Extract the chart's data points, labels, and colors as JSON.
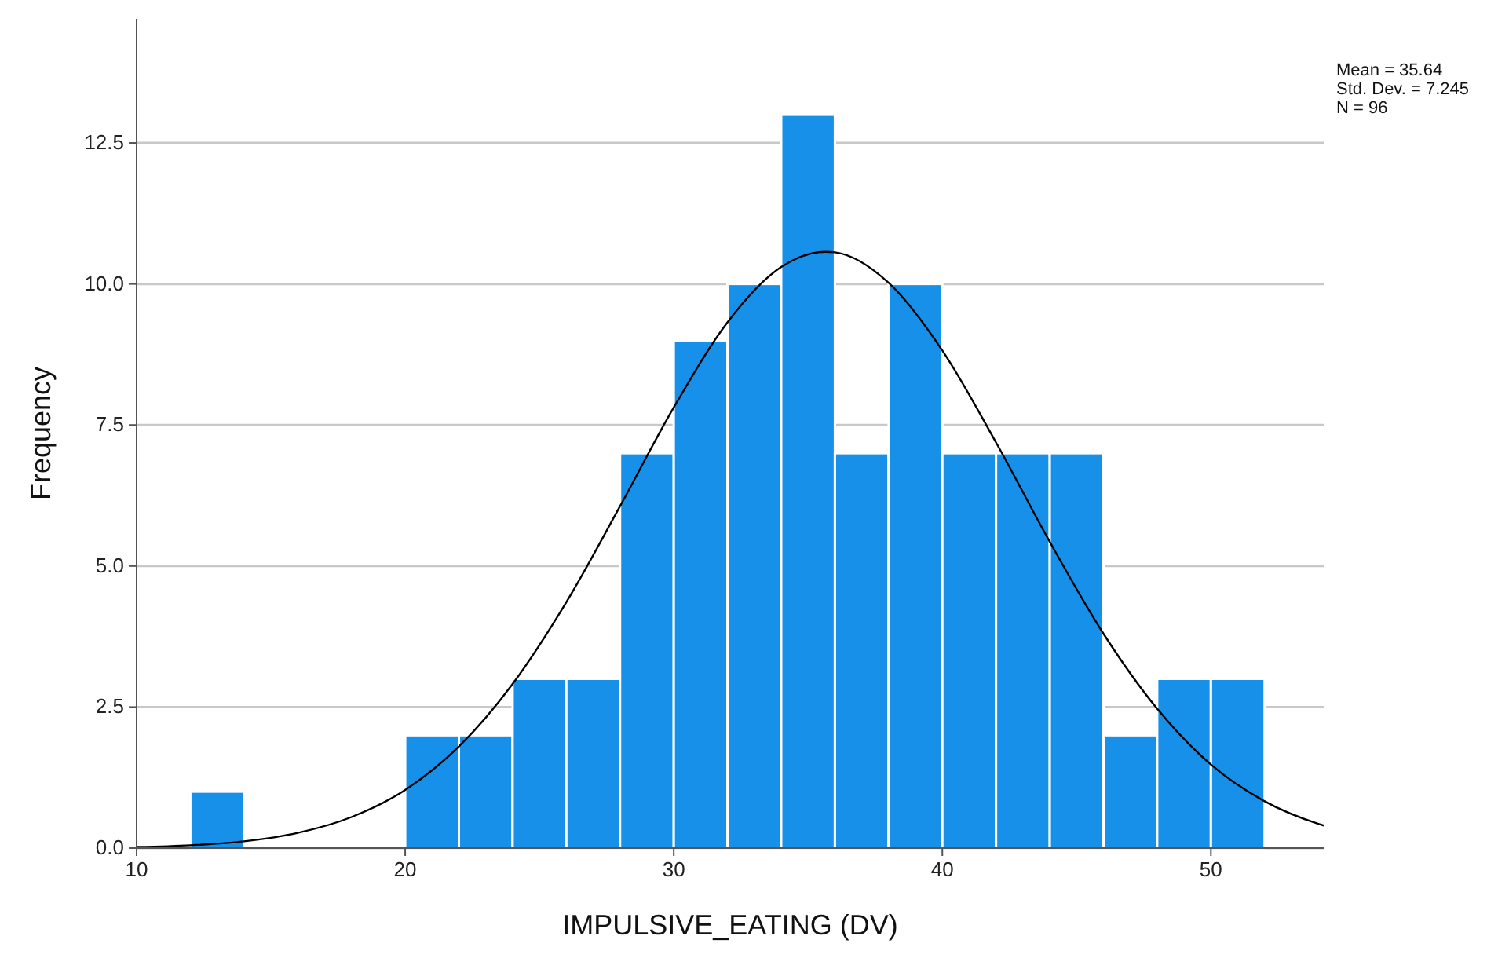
{
  "chart_data": {
    "type": "histogram",
    "xlabel": "IMPULSIVE_EATING (DV)",
    "ylabel": "Frequency",
    "bins": [
      12,
      14,
      16,
      18,
      20,
      22,
      24,
      26,
      28,
      30,
      32,
      34,
      36,
      38,
      40,
      42,
      44,
      46,
      48,
      50,
      52
    ],
    "series": [
      {
        "color": "#1690e8",
        "values": [
          1,
          0,
          0,
          0,
          2,
          2,
          3,
          3,
          7,
          9,
          10,
          13,
          7,
          10,
          7,
          7,
          7,
          2,
          3,
          3
        ]
      },
      {
        "type": "line",
        "color": "#000000",
        "x": [
          10,
          12,
          14,
          16,
          18,
          20,
          22,
          24,
          26,
          28,
          30,
          32,
          34,
          35.64,
          36,
          38,
          40,
          42,
          44,
          46,
          48,
          50,
          52,
          54,
          54.2
        ],
        "values": [
          0.02,
          0.05,
          0.12,
          0.27,
          0.55,
          1.03,
          1.8,
          2.91,
          4.36,
          6.06,
          7.81,
          9.32,
          10.3,
          10.57,
          10.56,
          10.02,
          8.82,
          7.19,
          5.43,
          3.8,
          2.47,
          1.48,
          0.83,
          0.43,
          0.4
        ]
      }
    ],
    "xlim": [
      10,
      54.2
    ],
    "xticks": [
      10,
      20,
      30,
      40,
      50
    ],
    "ylim": [
      0,
      14.7
    ],
    "yticks": [
      {
        "value": 0,
        "label": "0.0"
      },
      {
        "value": 2.5,
        "label": "2.5"
      },
      {
        "value": 5,
        "label": "5.0"
      },
      {
        "value": 7.5,
        "label": "7.5"
      },
      {
        "value": 10,
        "label": "10.0"
      },
      {
        "value": 12.5,
        "label": "12.5"
      }
    ],
    "grid": "y",
    "marker": "none",
    "line_style": "solid",
    "annotations": [
      "Mean = 35.64",
      "Std. Dev. = 7.245",
      "N = 96"
    ]
  }
}
